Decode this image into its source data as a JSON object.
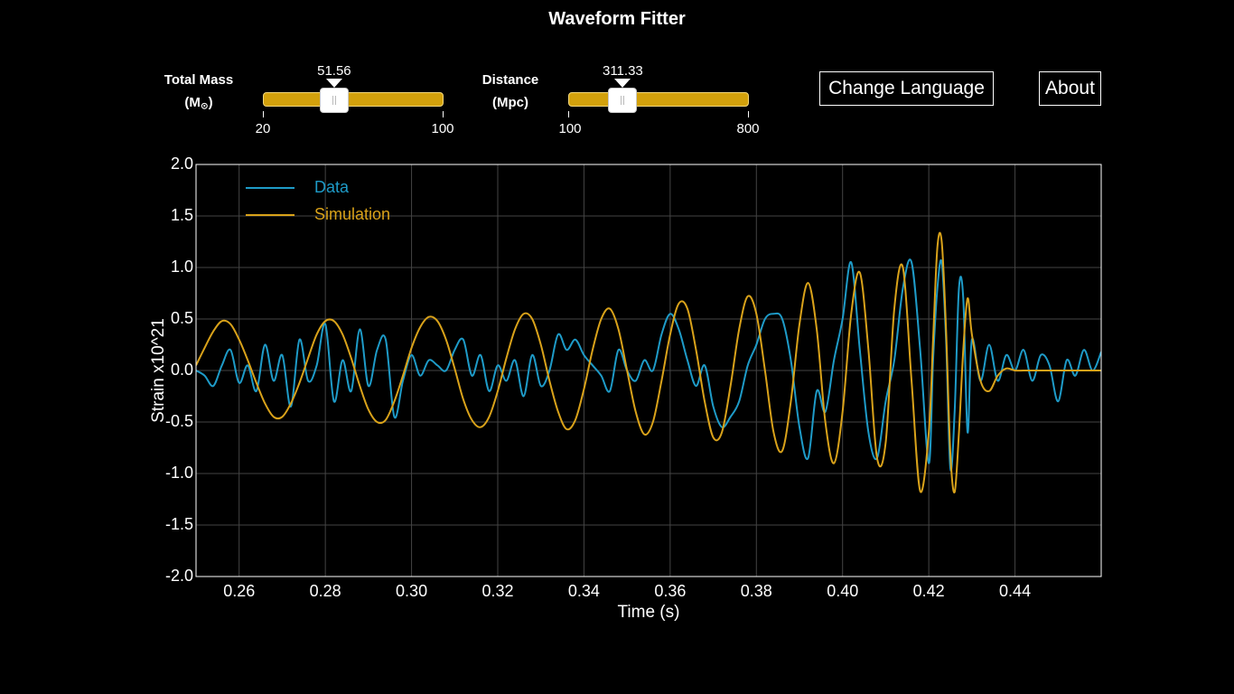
{
  "app": {
    "title": "Waveform Fitter"
  },
  "controls": {
    "mass": {
      "label_line1": "Total Mass",
      "label_unit": "(M",
      "label_sub": "⊙",
      "label_close": ")",
      "value": 51.56,
      "value_text": "51.56",
      "min": 20,
      "max": 100,
      "min_text": "20",
      "max_text": "100"
    },
    "distance": {
      "label_line1": "Distance",
      "label_unit": "(Mpc)",
      "value": 311.33,
      "value_text": "311.33",
      "min": 100,
      "max": 800,
      "min_text": "100",
      "max_text": "800"
    }
  },
  "buttons": {
    "change_language": "Change Language",
    "about": "About"
  },
  "chart_data": {
    "type": "line",
    "title": "",
    "xlabel": "Time (s)",
    "ylabel": "Strain x10^21",
    "xlim": [
      0.25,
      0.46
    ],
    "ylim": [
      -2.0,
      2.0
    ],
    "x_ticks": [
      0.26,
      0.28,
      0.3,
      0.32,
      0.34,
      0.36,
      0.38,
      0.4,
      0.42,
      0.44
    ],
    "x_tick_labels": [
      "0.26",
      "0.28",
      "0.30",
      "0.32",
      "0.34",
      "0.36",
      "0.38",
      "0.40",
      "0.42",
      "0.44"
    ],
    "y_ticks": [
      -2.0,
      -1.5,
      -1.0,
      -0.5,
      0.0,
      0.5,
      1.0,
      1.5,
      2.0
    ],
    "y_tick_labels": [
      "-2.0",
      "-1.5",
      "-1.0",
      "-0.5",
      "0.0",
      "0.5",
      "1.0",
      "1.5",
      "2.0"
    ],
    "grid": true,
    "legend_position": "top-left",
    "colors": {
      "data": "#1e9bc8",
      "simulation": "#d9a21a",
      "grid": "#444444",
      "axis": "#ffffff"
    },
    "series": [
      {
        "name": "Data",
        "color": "#1e9bc8",
        "x": [
          0.25,
          0.252,
          0.254,
          0.256,
          0.258,
          0.26,
          0.262,
          0.264,
          0.266,
          0.268,
          0.27,
          0.272,
          0.274,
          0.276,
          0.278,
          0.28,
          0.282,
          0.284,
          0.286,
          0.288,
          0.29,
          0.292,
          0.294,
          0.296,
          0.298,
          0.3,
          0.302,
          0.304,
          0.306,
          0.308,
          0.31,
          0.312,
          0.314,
          0.316,
          0.318,
          0.32,
          0.322,
          0.324,
          0.326,
          0.328,
          0.33,
          0.332,
          0.334,
          0.336,
          0.338,
          0.34,
          0.342,
          0.344,
          0.346,
          0.348,
          0.35,
          0.352,
          0.354,
          0.356,
          0.358,
          0.36,
          0.362,
          0.364,
          0.366,
          0.368,
          0.37,
          0.372,
          0.374,
          0.376,
          0.378,
          0.38,
          0.382,
          0.384,
          0.386,
          0.388,
          0.39,
          0.392,
          0.394,
          0.396,
          0.398,
          0.4,
          0.402,
          0.404,
          0.406,
          0.408,
          0.41,
          0.412,
          0.414,
          0.416,
          0.418,
          0.42,
          0.421,
          0.422,
          0.423,
          0.424,
          0.425,
          0.426,
          0.427,
          0.428,
          0.429,
          0.43,
          0.432,
          0.434,
          0.436,
          0.438,
          0.44,
          0.442,
          0.444,
          0.446,
          0.448,
          0.45,
          0.452,
          0.454,
          0.456,
          0.458,
          0.46
        ],
        "y": [
          0.0,
          -0.05,
          -0.15,
          0.05,
          0.2,
          -0.12,
          0.05,
          -0.2,
          0.25,
          -0.1,
          0.15,
          -0.35,
          0.3,
          -0.1,
          0.05,
          0.45,
          -0.3,
          0.1,
          -0.2,
          0.4,
          -0.15,
          0.2,
          0.3,
          -0.45,
          -0.1,
          0.15,
          -0.05,
          0.1,
          0.05,
          0.0,
          0.2,
          0.3,
          -0.05,
          0.15,
          -0.2,
          0.05,
          -0.1,
          0.1,
          -0.25,
          0.15,
          -0.15,
          0.0,
          0.35,
          0.2,
          0.3,
          0.15,
          0.05,
          -0.05,
          -0.2,
          0.2,
          0.0,
          -0.1,
          0.1,
          0.0,
          0.35,
          0.55,
          0.4,
          0.1,
          -0.15,
          0.05,
          -0.35,
          -0.55,
          -0.45,
          -0.3,
          0.05,
          0.25,
          0.5,
          0.55,
          0.5,
          0.1,
          -0.55,
          -0.85,
          -0.2,
          -0.4,
          0.1,
          0.5,
          1.05,
          0.2,
          -0.6,
          -0.85,
          -0.3,
          0.1,
          0.8,
          1.05,
          0.2,
          -0.9,
          0.1,
          0.8,
          1.05,
          0.3,
          -0.95,
          -0.4,
          0.8,
          0.7,
          -0.6,
          0.3,
          -0.1,
          0.25,
          -0.1,
          0.15,
          0.0,
          0.2,
          -0.1,
          0.15,
          0.05,
          -0.3,
          0.1,
          -0.05,
          0.2,
          0.0,
          0.18
        ]
      },
      {
        "name": "Simulation",
        "color": "#d9a21a",
        "x": [
          0.25,
          0.252,
          0.254,
          0.256,
          0.258,
          0.26,
          0.262,
          0.264,
          0.266,
          0.268,
          0.27,
          0.272,
          0.274,
          0.276,
          0.278,
          0.28,
          0.282,
          0.284,
          0.286,
          0.288,
          0.29,
          0.292,
          0.294,
          0.296,
          0.298,
          0.3,
          0.302,
          0.304,
          0.306,
          0.308,
          0.31,
          0.312,
          0.314,
          0.316,
          0.318,
          0.32,
          0.322,
          0.324,
          0.326,
          0.328,
          0.33,
          0.332,
          0.334,
          0.336,
          0.338,
          0.34,
          0.342,
          0.344,
          0.346,
          0.348,
          0.35,
          0.352,
          0.354,
          0.356,
          0.358,
          0.36,
          0.362,
          0.364,
          0.366,
          0.368,
          0.37,
          0.372,
          0.374,
          0.376,
          0.378,
          0.38,
          0.382,
          0.384,
          0.386,
          0.388,
          0.39,
          0.392,
          0.394,
          0.396,
          0.398,
          0.4,
          0.402,
          0.404,
          0.406,
          0.408,
          0.41,
          0.412,
          0.414,
          0.416,
          0.418,
          0.42,
          0.421,
          0.422,
          0.423,
          0.424,
          0.425,
          0.426,
          0.427,
          0.428,
          0.429,
          0.43,
          0.432,
          0.434,
          0.436,
          0.438,
          0.44,
          0.442,
          0.444,
          0.446,
          0.448,
          0.45,
          0.452,
          0.454,
          0.456,
          0.458,
          0.46
        ],
        "y": [
          0.05,
          0.22,
          0.38,
          0.48,
          0.45,
          0.3,
          0.1,
          -0.12,
          -0.32,
          -0.45,
          -0.45,
          -0.32,
          -0.12,
          0.12,
          0.35,
          0.48,
          0.48,
          0.35,
          0.12,
          -0.15,
          -0.38,
          -0.5,
          -0.48,
          -0.3,
          -0.05,
          0.22,
          0.42,
          0.52,
          0.48,
          0.3,
          0.02,
          -0.28,
          -0.48,
          -0.55,
          -0.45,
          -0.2,
          0.12,
          0.4,
          0.55,
          0.5,
          0.25,
          -0.1,
          -0.4,
          -0.57,
          -0.48,
          -0.18,
          0.2,
          0.5,
          0.6,
          0.4,
          0.0,
          -0.4,
          -0.62,
          -0.5,
          -0.1,
          0.35,
          0.65,
          0.6,
          0.2,
          -0.3,
          -0.65,
          -0.6,
          -0.15,
          0.4,
          0.72,
          0.55,
          0.0,
          -0.6,
          -0.78,
          -0.3,
          0.45,
          0.85,
          0.4,
          -0.5,
          -0.9,
          -0.4,
          0.55,
          0.95,
          0.2,
          -0.85,
          -0.7,
          0.6,
          1.0,
          -0.1,
          -1.17,
          -0.6,
          0.3,
          1.2,
          1.25,
          0.4,
          -0.8,
          -1.18,
          -0.6,
          0.2,
          0.7,
          0.35,
          -0.1,
          -0.2,
          -0.05,
          0.02,
          0.0,
          0.0,
          0.0,
          0.0,
          0.0,
          0.0,
          0.0,
          0.0,
          0.0,
          0.0,
          0.0
        ]
      }
    ]
  }
}
